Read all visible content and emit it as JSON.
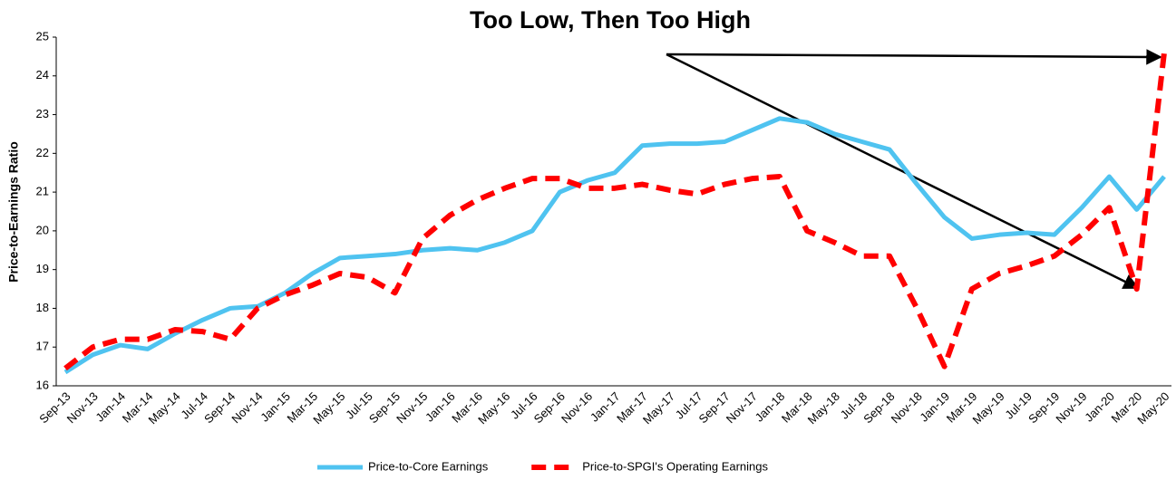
{
  "chart_data": {
    "type": "line",
    "title": "Too Low, Then Too High",
    "y_label": "Price-to-Earnings Ratio",
    "categories": [
      "Sep-13",
      "Nov-13",
      "Jan-14",
      "Mar-14",
      "May-14",
      "Jul-14",
      "Sep-14",
      "Nov-14",
      "Jan-15",
      "Mar-15",
      "May-15",
      "Jul-15",
      "Sep-15",
      "Nov-15",
      "Jan-16",
      "Mar-16",
      "May-16",
      "Jul-16",
      "Sep-16",
      "Nov-16",
      "Jan-17",
      "Mar-17",
      "May-17",
      "Jul-17",
      "Sep-17",
      "Nov-17",
      "Jan-18",
      "Mar-18",
      "May-18",
      "Jul-18",
      "Sep-18",
      "Nov-18",
      "Jan-19",
      "Mar-19",
      "May-19",
      "Jul-19",
      "Sep-19",
      "Nov-19",
      "Jan-20",
      "Mar-20",
      "May-20"
    ],
    "series": [
      {
        "name": "Price-to-Core Earnings",
        "color": "#4fc3f0",
        "dashed": false,
        "values": [
          16.35,
          16.8,
          17.05,
          16.95,
          17.35,
          17.7,
          18.0,
          18.05,
          18.4,
          18.9,
          19.3,
          19.35,
          19.4,
          19.5,
          19.55,
          19.5,
          19.7,
          20.0,
          21.0,
          21.3,
          21.5,
          22.2,
          22.25,
          22.25,
          22.3,
          22.6,
          22.9,
          22.8,
          22.5,
          22.3,
          22.1,
          21.2,
          20.35,
          19.8,
          19.9,
          19.95,
          19.9,
          20.6,
          21.4,
          20.55,
          21.4
        ]
      },
      {
        "name": "Price-to-SPGI's Operating Earnings",
        "color": "#ff0000",
        "dashed": true,
        "values": [
          16.45,
          17.0,
          17.2,
          17.2,
          17.45,
          17.4,
          17.2,
          18.0,
          18.35,
          18.6,
          18.9,
          18.8,
          18.4,
          19.8,
          20.4,
          20.8,
          21.1,
          21.35,
          21.35,
          21.1,
          21.1,
          21.2,
          21.05,
          20.95,
          21.2,
          21.35,
          21.4,
          20.0,
          19.7,
          19.35,
          19.35,
          18.0,
          16.5,
          18.5,
          18.9,
          19.1,
          19.35,
          19.9,
          20.6,
          18.5,
          24.6
        ]
      }
    ],
    "ylim": [
      16,
      25
    ],
    "yticks": [
      16,
      17,
      18,
      19,
      20,
      21,
      22,
      23,
      24,
      25
    ],
    "grid": false
  }
}
